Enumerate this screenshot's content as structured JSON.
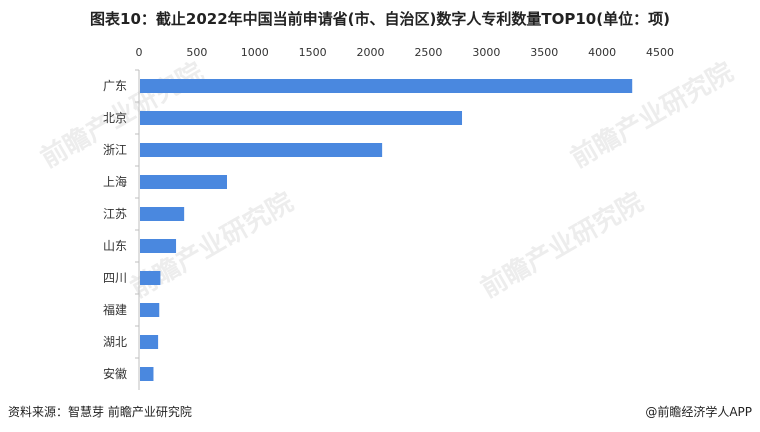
{
  "title": "图表10：截止2022年中国当前申请省(市、自治区)数字人专利数量TOP10(单位：项)",
  "source": "资料来源：智慧芽 前瞻产业研究院",
  "brand": "@前瞻经济学人APP",
  "watermark": "前瞻产业研究院",
  "bar_color": "#4a88df",
  "chart_data": {
    "type": "bar",
    "orientation": "horizontal",
    "categories": [
      "广东",
      "北京",
      "浙江",
      "上海",
      "江苏",
      "山东",
      "四川",
      "福建",
      "湖北",
      "安徽"
    ],
    "values": [
      4260,
      2790,
      2100,
      760,
      390,
      320,
      185,
      175,
      165,
      125
    ],
    "xlim": [
      0,
      4500
    ],
    "xticks": [
      0,
      500,
      1000,
      1500,
      2000,
      2500,
      3000,
      3500,
      4000,
      4500
    ],
    "axis_position": "top",
    "grid": false,
    "legend": "none"
  }
}
